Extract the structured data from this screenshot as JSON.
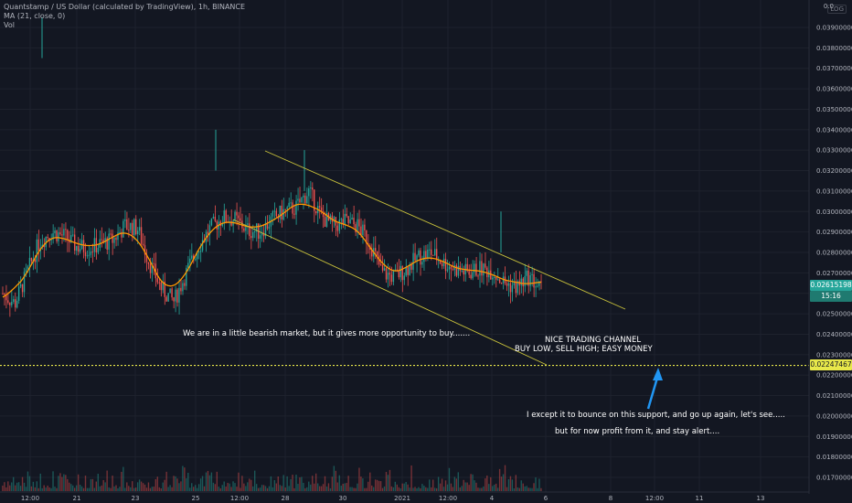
{
  "header": {
    "title": "Quantstamp / US Dollar (calculated by TradingView), 1h, BINANCE",
    "ma_label": "MA (21, close, 0)",
    "vol_label": "Vol",
    "log_label": "LOG"
  },
  "colors": {
    "background": "#131722",
    "grid": "#1e222d",
    "up": "#26a69a",
    "down": "#ef5350",
    "ma": "#ff9800",
    "channel": "#c9c23b",
    "support": "#e8e84a",
    "arrow": "#2196f3",
    "current_price_bg": "#26a69a",
    "support_price_bg": "#e8e84a"
  },
  "price_badges": {
    "top": "0.0",
    "current_price": "0.02615198",
    "countdown": "15:16",
    "support_price": "0.02247467"
  },
  "annotations": {
    "bearish_note": "We are in a little bearish market, but it gives more opportunity to buy.......",
    "channel_line1": "NICE TRADING CHANNEL",
    "channel_line2": "BUY LOW, SELL HIGH; EASY MONEY",
    "support_line1": "I except it to bounce on this support, and go up again, let's see.....",
    "support_line2": "but for now profit from it, and stay alert...."
  },
  "chart_data": {
    "type": "candlestick",
    "title": "Quantstamp / US Dollar (calculated by TradingView), 1h, BINANCE",
    "y_axis": {
      "ticks": [
        "0.03900000",
        "0.03800000",
        "0.03700000",
        "0.03600000",
        "0.03500000",
        "0.03400000",
        "0.03300000",
        "0.03200000",
        "0.03100000",
        "0.03000000",
        "0.02900000",
        "0.02800000",
        "0.02700000",
        "0.02600000",
        "0.02500000",
        "0.02400000",
        "0.02300000",
        "0.02200000",
        "0.02100000",
        "0.02000000",
        "0.01900000",
        "0.01800000",
        "0.01700000"
      ],
      "range": [
        0.0165,
        0.0405
      ]
    },
    "x_axis": {
      "ticks": [
        "12:00",
        "21",
        "23",
        "25",
        "12:00",
        "28",
        "30",
        "2021",
        "12:00",
        "4",
        "6",
        "8",
        "12:00",
        "11",
        "13"
      ]
    },
    "indicators": [
      "MA (21, close, 0)",
      "Vol"
    ],
    "support_level": 0.02247467,
    "current_price": 0.02615198,
    "trend_channel": {
      "upper": [
        {
          "t": "26 12:00",
          "price": 0.0334
        },
        {
          "t": "7",
          "price": 0.0252
        }
      ],
      "lower": [
        {
          "t": "26",
          "price": 0.029
        },
        {
          "t": "5",
          "price": 0.0225
        }
      ]
    },
    "close_series_approx": [
      0.026,
      0.0255,
      0.027,
      0.0285,
      0.029,
      0.0288,
      0.0283,
      0.0282,
      0.0284,
      0.0286,
      0.0293,
      0.0292,
      0.0275,
      0.0262,
      0.0256,
      0.027,
      0.0283,
      0.0292,
      0.0297,
      0.0296,
      0.0291,
      0.029,
      0.0296,
      0.03,
      0.0302,
      0.031,
      0.0298,
      0.0293,
      0.0295,
      0.0293,
      0.0285,
      0.027,
      0.0268,
      0.0272,
      0.0278,
      0.028,
      0.0275,
      0.0272,
      0.027,
      0.0272,
      0.0271,
      0.0265,
      0.0263,
      0.0268,
      0.0262
    ]
  }
}
